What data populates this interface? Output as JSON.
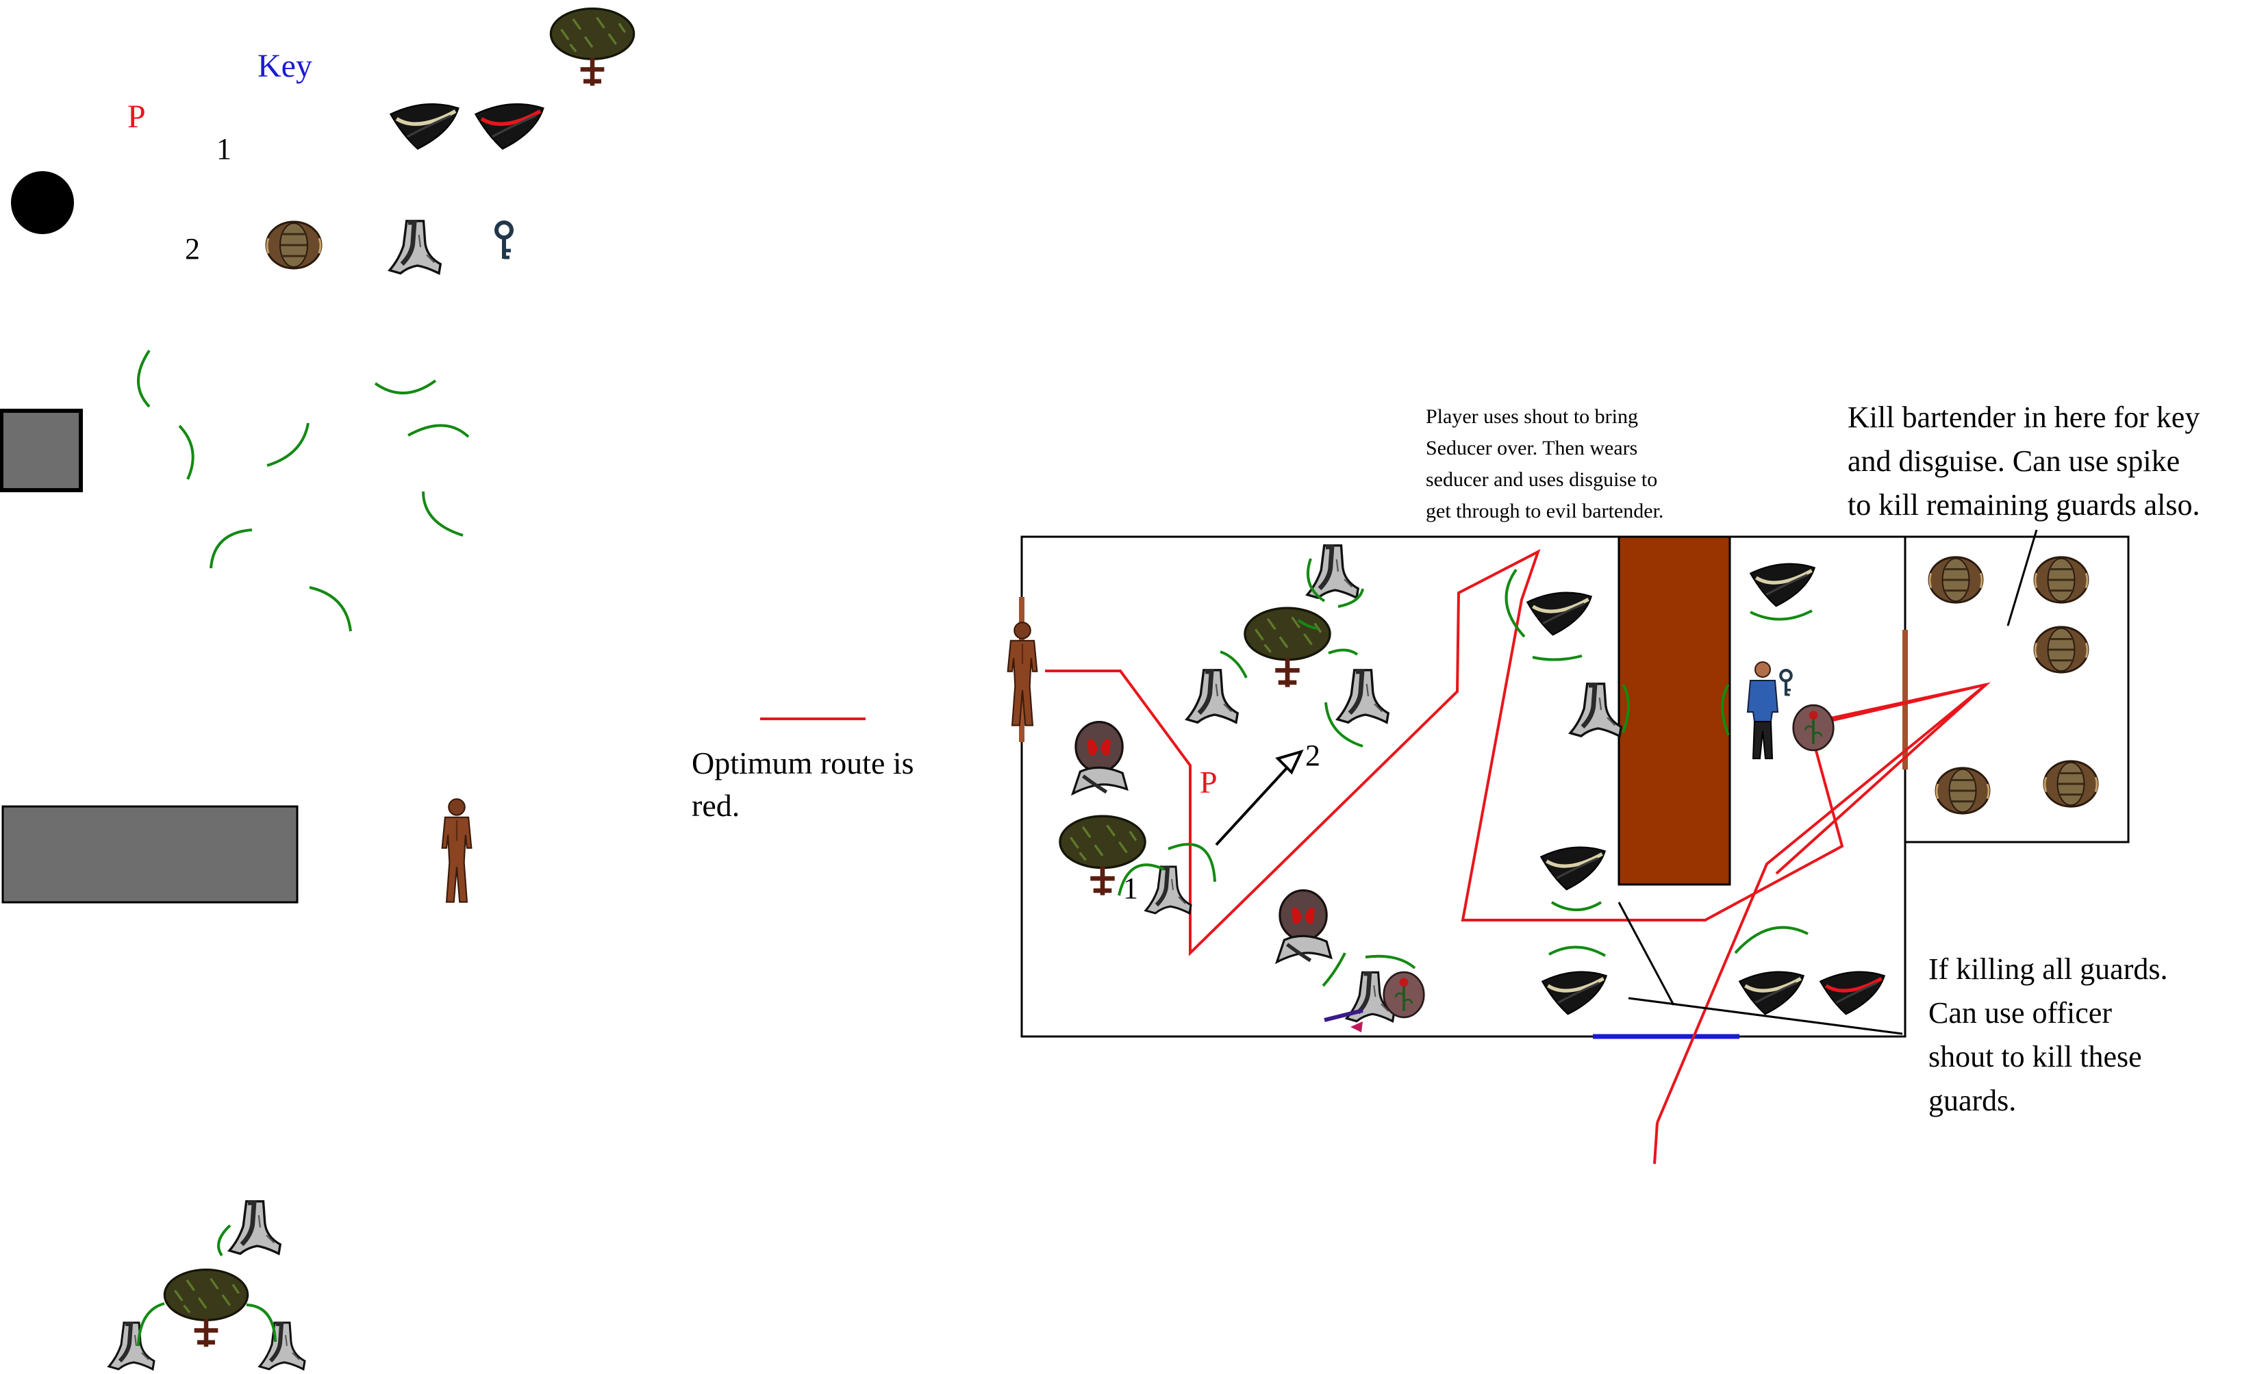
{
  "legend": {
    "title": "Key",
    "player_marker": "P",
    "waypoint_1": "1",
    "waypoint_2": "2"
  },
  "route_legend": {
    "line1": "Optimum route is",
    "line2": "red."
  },
  "map_labels": {
    "player_marker": "P",
    "waypoint_1": "1",
    "waypoint_2": "2"
  },
  "annotations": {
    "seducer_note": [
      "Player uses shout to bring",
      "Seducer over. Then wears",
      "seducer and uses disguise to",
      "get through to evil bartender."
    ],
    "bartender_note": [
      "Kill bartender in here for key",
      "and disguise. Can use spike",
      "to kill remaining guards also."
    ],
    "guards_note": [
      "If killing all guards.",
      "Can use officer",
      "shout to kill these",
      "guards."
    ]
  },
  "colors": {
    "route": "#e8161c",
    "vision_arc": "#138a13",
    "key_title": "#1a1ad6",
    "player_marker": "#e8161c",
    "bar_counter": "#993300",
    "exit_line": "#1a1ad6",
    "door": "#a0522d",
    "wall_fill": "#6e6e6e"
  }
}
